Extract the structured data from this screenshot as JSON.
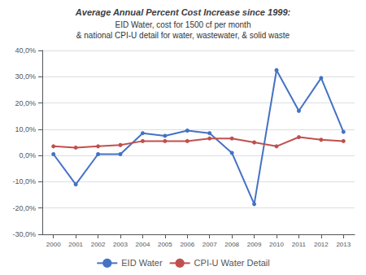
{
  "chart_data": {
    "type": "line",
    "title": "Average Annual Percent Cost Increase since 1999:",
    "subtitle": "EID Water, cost for 1500 cf per month\n& national CPI-U detail for water, wastewater, & solid waste",
    "x": [
      2000,
      2001,
      2002,
      2003,
      2004,
      2005,
      2006,
      2007,
      2008,
      2009,
      2010,
      2011,
      2012,
      2013
    ],
    "series": [
      {
        "name": "EID Water",
        "color": "#4472C4",
        "marker": "circle",
        "values": [
          0.5,
          -11.0,
          0.5,
          0.5,
          8.5,
          7.5,
          9.5,
          8.5,
          1.0,
          -18.5,
          32.5,
          17.0,
          29.5,
          9.0
        ]
      },
      {
        "name": "CPI-U Water Detail",
        "color": "#C0504D",
        "marker": "circle",
        "values": [
          3.5,
          3.0,
          3.5,
          4.0,
          5.5,
          5.5,
          5.5,
          6.5,
          6.5,
          5.0,
          3.5,
          7.0,
          6.0,
          5.5
        ]
      }
    ],
    "xlim": [
      1999.5,
      2013.5
    ],
    "xticks": [
      2000,
      2001,
      2002,
      2003,
      2004,
      2005,
      2006,
      2007,
      2008,
      2009,
      2010,
      2011,
      2012,
      2013
    ],
    "ylim": [
      -30,
      40
    ],
    "yticks": [
      {
        "value": -30,
        "label": "-30,0%"
      },
      {
        "value": -20,
        "label": "-20,0%"
      },
      {
        "value": -10,
        "label": "-10,0%"
      },
      {
        "value": 0,
        "label": "0,0%"
      },
      {
        "value": 10,
        "label": "10,0%"
      },
      {
        "value": 20,
        "label": "20,0%"
      },
      {
        "value": 30,
        "label": "30,0%"
      },
      {
        "value": 40,
        "label": "40,0%"
      }
    ],
    "grid": true,
    "legend": "bottom"
  }
}
